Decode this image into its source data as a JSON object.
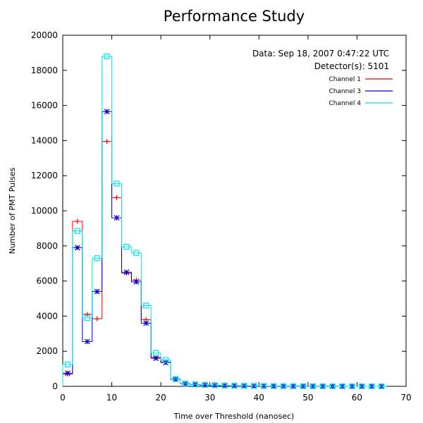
{
  "chart_data": {
    "type": "line",
    "title": "Performance Study",
    "xlabel": "Time over Threshold (nanosec)",
    "ylabel": "Number of PMT Pulses",
    "xlim": [
      0,
      70
    ],
    "ylim": [
      0,
      20000
    ],
    "xticks": [
      0,
      10,
      20,
      30,
      40,
      50,
      60,
      70
    ],
    "yticks": [
      0,
      2000,
      4000,
      6000,
      8000,
      10000,
      12000,
      14000,
      16000,
      18000,
      20000
    ],
    "annotations": [
      "Data: Sep 18, 2007 0:47:22 UTC",
      "Detector(s): 5101"
    ],
    "legend_position": "top-right",
    "bin_width": 2,
    "x": [
      1,
      3,
      5,
      7,
      9,
      11,
      13,
      15,
      17,
      19,
      21,
      23,
      25,
      27,
      29,
      31,
      33,
      35,
      37,
      39,
      41,
      43,
      45,
      47,
      49,
      51,
      53,
      55,
      57,
      59,
      61,
      63,
      65
    ],
    "series": [
      {
        "name": "Channel 1",
        "color": "#ff0000",
        "marker": "plus",
        "values": [
          700,
          9400,
          4100,
          3850,
          13950,
          10750,
          6450,
          6050,
          3800,
          1650,
          1400,
          430,
          150,
          100,
          80,
          60,
          40,
          30,
          25,
          20,
          15,
          12,
          10,
          8,
          6,
          5,
          4,
          3,
          2,
          2,
          1,
          1,
          0
        ]
      },
      {
        "name": "Channel 3",
        "color": "#0000cc",
        "marker": "star",
        "values": [
          750,
          7900,
          2550,
          5400,
          15650,
          9600,
          6500,
          5950,
          3600,
          1600,
          1350,
          400,
          140,
          100,
          70,
          55,
          40,
          30,
          25,
          20,
          15,
          12,
          10,
          8,
          6,
          5,
          4,
          3,
          2,
          2,
          1,
          1,
          0
        ]
      },
      {
        "name": "Channel 4",
        "color": "#00e5ee",
        "marker": "square",
        "values": [
          1250,
          8850,
          3900,
          7300,
          18800,
          11550,
          7950,
          7600,
          4600,
          1900,
          1500,
          420,
          160,
          110,
          90,
          70,
          50,
          35,
          30,
          25,
          20,
          15,
          12,
          10,
          8,
          6,
          5,
          4,
          3,
          2,
          2,
          1,
          1
        ]
      }
    ]
  }
}
